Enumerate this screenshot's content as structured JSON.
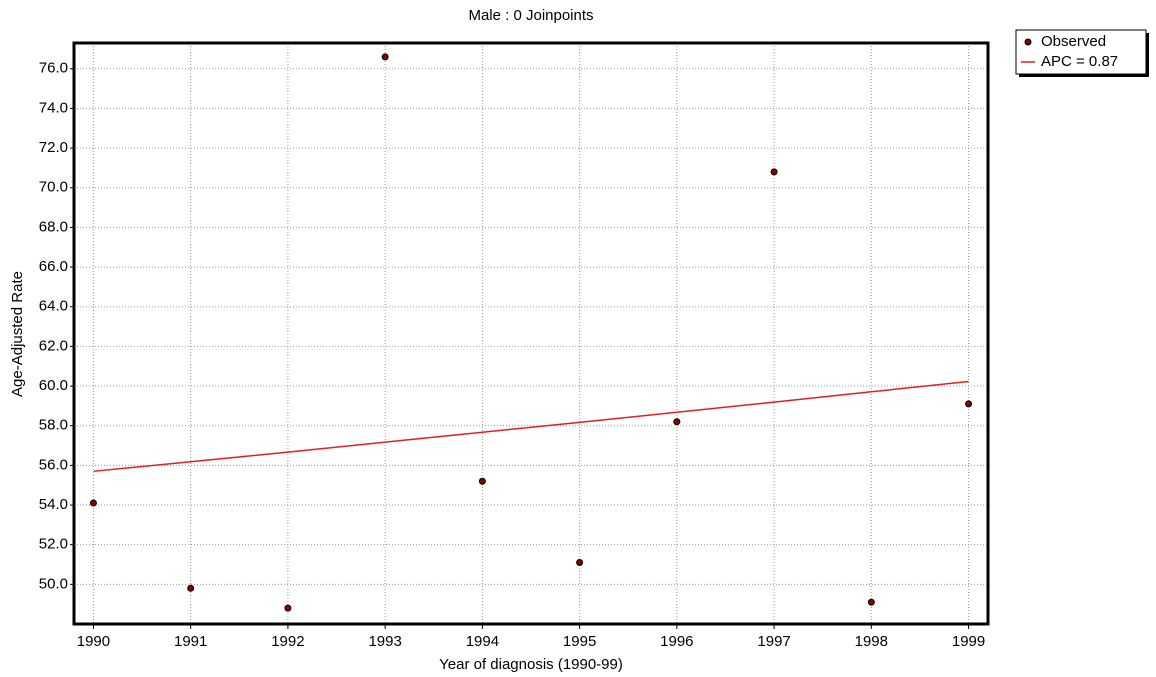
{
  "chart_data": {
    "type": "scatter",
    "title": "Male : 0 Joinpoints",
    "x_label": "Year of diagnosis (1990-99)",
    "y_label": "Age-Adjusted Rate",
    "x": [
      1990,
      1991,
      1992,
      1993,
      1994,
      1995,
      1996,
      1997,
      1998,
      1999
    ],
    "series": [
      {
        "name": "Observed",
        "mode": "markers",
        "color": "#8b0000",
        "values": [
          54.1,
          49.8,
          48.8,
          76.6,
          55.2,
          51.1,
          58.2,
          70.8,
          49.1,
          59.1
        ]
      },
      {
        "name": "APC = 0.87",
        "mode": "line",
        "color": "#e02020",
        "values": [
          55.7,
          56.18,
          56.67,
          57.17,
          57.67,
          58.17,
          58.68,
          59.19,
          59.71,
          60.23
        ]
      }
    ],
    "xlim": [
      1989.8,
      1999.2
    ],
    "xticks": [
      1990,
      1991,
      1992,
      1993,
      1994,
      1995,
      1996,
      1997,
      1998,
      1999
    ],
    "ylim": [
      48.0,
      77.3
    ],
    "yticks": [
      {
        "value": 50,
        "label": "50.0"
      },
      {
        "value": 52,
        "label": "52.0"
      },
      {
        "value": 54,
        "label": "54.0"
      },
      {
        "value": 56,
        "label": "56.0"
      },
      {
        "value": 58,
        "label": "58.0"
      },
      {
        "value": 60,
        "label": "60.0"
      },
      {
        "value": 62,
        "label": "62.0"
      },
      {
        "value": 64,
        "label": "64.0"
      },
      {
        "value": 66,
        "label": "66.0"
      },
      {
        "value": 68,
        "label": "68.0"
      },
      {
        "value": 70,
        "label": "70.0"
      },
      {
        "value": 72,
        "label": "72.0"
      },
      {
        "value": 74,
        "label": "74.0"
      },
      {
        "value": 76,
        "label": "76.0"
      }
    ],
    "grid": true,
    "legend": "top-right"
  }
}
